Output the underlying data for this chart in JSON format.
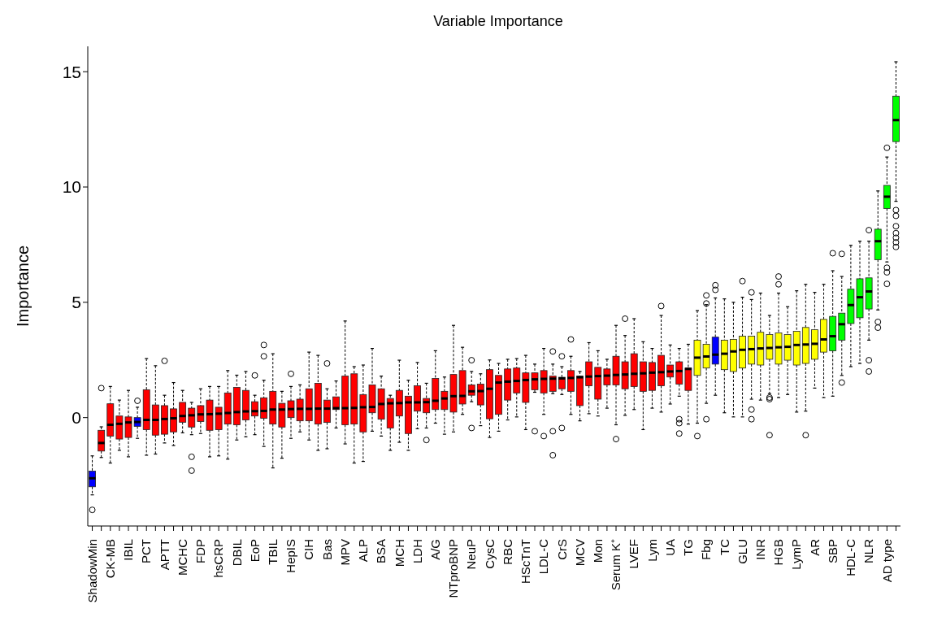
{
  "chart_data": {
    "type": "box",
    "title": "Variable Importance",
    "ylabel": "Importance",
    "categories": [
      "ShadowMin",
      null,
      "CK-MB",
      null,
      "IBIL",
      null,
      "PCT",
      null,
      "APTT",
      null,
      "MCHC",
      null,
      "FDP",
      null,
      "hsCRP",
      null,
      "DBIL",
      null,
      "EoP",
      null,
      "TBIL",
      null,
      "HepIS",
      null,
      "CIH",
      null,
      "Bas",
      null,
      "MPV",
      null,
      "ALP",
      null,
      "BSA",
      null,
      "MCH",
      null,
      "LDH",
      null,
      "A/G",
      null,
      "NTproBNP",
      null,
      "NeuP",
      null,
      "CysC",
      null,
      "RBC",
      null,
      "HScTnT",
      null,
      "LDL-C",
      null,
      "CrS",
      null,
      "MCV",
      null,
      "Mon",
      null,
      "Serum K⁺",
      null,
      "LVEF",
      null,
      "Lym",
      null,
      "UA",
      null,
      "TG",
      null,
      "Fbg",
      null,
      "TC",
      null,
      "GLU",
      null,
      "INR",
      null,
      "HGB",
      null,
      "LymP",
      null,
      "AR",
      null,
      "SBP",
      null,
      "HDL-C",
      null,
      "NLR",
      null,
      "AD type",
      null
    ],
    "colors": [
      "#0000ff",
      "#ff0000",
      "#ff0000",
      "#ff0000",
      "#ff0000",
      "#0000ff",
      "#ff0000",
      "#ff0000",
      "#ff0000",
      "#ff0000",
      "#ff0000",
      "#ff0000",
      "#ff0000",
      "#ff0000",
      "#ff0000",
      "#ff0000",
      "#ff0000",
      "#ff0000",
      "#ff0000",
      "#ff0000",
      "#ff0000",
      "#ff0000",
      "#ff0000",
      "#ff0000",
      "#ff0000",
      "#ff0000",
      "#ff0000",
      "#ff0000",
      "#ff0000",
      "#ff0000",
      "#ff0000",
      "#ff0000",
      "#ff0000",
      "#ff0000",
      "#ff0000",
      "#ff0000",
      "#ff0000",
      "#ff0000",
      "#ff0000",
      "#ff0000",
      "#ff0000",
      "#ff0000",
      "#ff0000",
      "#ff0000",
      "#ff0000",
      "#ff0000",
      "#ff0000",
      "#ff0000",
      "#ff0000",
      "#ff0000",
      "#ff0000",
      "#ff0000",
      "#ff0000",
      "#ff0000",
      "#ff0000",
      "#ff0000",
      "#ff0000",
      "#ff0000",
      "#ff0000",
      "#ff0000",
      "#ff0000",
      "#ff0000",
      "#ff0000",
      "#ff0000",
      "#ff0000",
      "#ff0000",
      "#ff0000",
      "#ffff00",
      "#ffff00",
      "#0000ff",
      "#ffff00",
      "#ffff00",
      "#ffff00",
      "#ffff00",
      "#ffff00",
      "#ffff00",
      "#ffff00",
      "#ffff00",
      "#ffff00",
      "#ffff00",
      "#ffff00",
      "#ffff00",
      "#00ff00",
      "#00ff00",
      "#00ff00",
      "#00ff00",
      "#00ff00",
      "#00ff00",
      "#00ff00",
      "#00ff00"
    ],
    "ylim": [
      -4.7,
      16.1
    ],
    "yticks": [
      0,
      5,
      10,
      15
    ],
    "boxes": [
      {
        "low": -3.35,
        "q1": -3.0,
        "median": -2.63,
        "q3": -2.32,
        "high": -1.66,
        "outliers": [
          -4.0
        ]
      },
      {
        "low": -1.73,
        "q1": -1.45,
        "median": -1.1,
        "q3": -0.55,
        "high": -0.4,
        "outliers": [
          1.28
        ]
      },
      {
        "low": -1.97,
        "q1": -0.8,
        "median": -0.31,
        "q3": 0.6,
        "high": 1.35
      },
      {
        "low": -1.42,
        "q1": -0.93,
        "median": -0.27,
        "q3": 0.07,
        "high": 0.76
      },
      {
        "low": -1.7,
        "q1": -0.86,
        "median": -0.21,
        "q3": 0.03,
        "high": 1.18
      },
      {
        "low": -0.9,
        "q1": -0.38,
        "median": -0.19,
        "q3": 0,
        "high": 0.45,
        "outliers": [
          0.73
        ]
      },
      {
        "low": -1.63,
        "q1": -0.52,
        "median": -0.1,
        "q3": 1.21,
        "high": 2.56
      },
      {
        "low": -1.58,
        "q1": -0.76,
        "median": -0.1,
        "q3": 0.55,
        "high": 2.25
      },
      {
        "low": -1.1,
        "q1": -0.72,
        "median": -0.06,
        "q3": 0.52,
        "high": 0.97,
        "outliers": [
          2.46
        ]
      },
      {
        "low": -1.21,
        "q1": -0.62,
        "median": -0.03,
        "q3": 0.38,
        "high": 1.52
      },
      {
        "low": -0.66,
        "q1": -0.2,
        "median": 0.07,
        "q3": 0.66,
        "high": 1.18
      },
      {
        "low": -0.74,
        "q1": -0.41,
        "median": 0.1,
        "q3": 0.41,
        "high": 0.66,
        "outliers": [
          -1.7,
          -2.3
        ]
      },
      {
        "low": -0.69,
        "q1": -0.17,
        "median": 0.14,
        "q3": 0.52,
        "high": 1.25
      },
      {
        "low": -1.7,
        "q1": -0.55,
        "median": 0.15,
        "q3": 0.76,
        "high": 1.35
      },
      {
        "low": -1.66,
        "q1": -0.52,
        "median": 0.17,
        "q3": 0.45,
        "high": 1.35
      },
      {
        "low": -1.8,
        "q1": -0.28,
        "median": 0.2,
        "q3": 1.07,
        "high": 2.04
      },
      {
        "low": -0.97,
        "q1": -0.31,
        "median": 0.24,
        "q3": 1.31,
        "high": 1.84
      },
      {
        "low": -0.83,
        "q1": -0.1,
        "median": 0.27,
        "q3": 1.18,
        "high": 2.0
      },
      {
        "low": -0.74,
        "q1": 0.07,
        "median": 0.28,
        "q3": 0.69,
        "high": 0.97,
        "outliers": [
          1.83
        ]
      },
      {
        "low": -1.25,
        "q1": -0.03,
        "median": 0.29,
        "q3": 0.86,
        "high": 1.62,
        "outliers": [
          2.66,
          3.15
        ]
      },
      {
        "low": -2.18,
        "q1": -0.28,
        "median": 0.35,
        "q3": 1.14,
        "high": 2.77
      },
      {
        "low": -1.76,
        "q1": -0.41,
        "median": 0.35,
        "q3": 0.62,
        "high": 1.14
      },
      {
        "low": -0.9,
        "q1": 0,
        "median": 0.37,
        "q3": 0.73,
        "high": 1.35,
        "outliers": [
          1.9
        ]
      },
      {
        "low": -0.62,
        "q1": -0.14,
        "median": 0.38,
        "q3": 0.8,
        "high": 1.42
      },
      {
        "low": -0.97,
        "q1": -0.14,
        "median": 0.38,
        "q3": 1.25,
        "high": 2.84
      },
      {
        "low": -1.42,
        "q1": -0.28,
        "median": 0.39,
        "q3": 1.49,
        "high": 2.7
      },
      {
        "low": -1.35,
        "q1": -0.21,
        "median": 0.39,
        "q3": 0.76,
        "high": 1.25,
        "outliers": [
          2.35
        ]
      },
      {
        "low": -0.45,
        "q1": 0.35,
        "median": 0.41,
        "q3": 0.9,
        "high": 1.59
      },
      {
        "low": -1.14,
        "q1": -0.31,
        "median": 0.41,
        "q3": 1.8,
        "high": 4.19
      },
      {
        "low": -1.97,
        "q1": -0.28,
        "median": 0.42,
        "q3": 1.9,
        "high": 2.21
      },
      {
        "low": -1.9,
        "q1": -0.62,
        "median": 0.45,
        "q3": 1.0,
        "high": 2.28
      },
      {
        "low": -0.59,
        "q1": 0.21,
        "median": 0.46,
        "q3": 1.42,
        "high": 3.0
      },
      {
        "low": -0.8,
        "q1": -0.07,
        "median": 0.59,
        "q3": 1.25,
        "high": 1.8
      },
      {
        "low": -1.42,
        "q1": -0.45,
        "median": 0.62,
        "q3": 0.83,
        "high": 0.97
      },
      {
        "low": -1.07,
        "q1": 0.07,
        "median": 0.63,
        "q3": 1.18,
        "high": 2.49
      },
      {
        "low": -1.42,
        "q1": -0.69,
        "median": 0.66,
        "q3": 0.93,
        "high": 1.62
      },
      {
        "low": -0.48,
        "q1": 0.28,
        "median": 0.66,
        "q3": 1.38,
        "high": 2.39
      },
      {
        "low": -0.45,
        "q1": 0.21,
        "median": 0.67,
        "q3": 0.83,
        "high": 1.49,
        "outliers": [
          -0.97
        ]
      },
      {
        "low": -0.24,
        "q1": 0.35,
        "median": 0.73,
        "q3": 1.7,
        "high": 2.9
      },
      {
        "low": -0.72,
        "q1": 0.35,
        "median": 0.83,
        "q3": 1.14,
        "high": 1.76
      },
      {
        "low": -0.62,
        "q1": 0.24,
        "median": 0.93,
        "q3": 1.87,
        "high": 4.0
      },
      {
        "low": 0.14,
        "q1": 0.59,
        "median": 0.94,
        "q3": 2.04,
        "high": 3.05
      },
      {
        "low": 0.69,
        "q1": 0.97,
        "median": 1.14,
        "q3": 1.42,
        "high": 2.0,
        "outliers": [
          2.49,
          -0.45
        ]
      },
      {
        "low": -0.35,
        "q1": 0.55,
        "median": 1.15,
        "q3": 1.45,
        "high": 1.9
      },
      {
        "low": -0.86,
        "q1": -0.05,
        "median": 1.25,
        "q3": 2.08,
        "high": 2.5
      },
      {
        "low": -0.59,
        "q1": 0.14,
        "median": 1.52,
        "q3": 1.83,
        "high": 2.35
      },
      {
        "low": -0.1,
        "q1": 0.76,
        "median": 1.56,
        "q3": 2.11,
        "high": 2.53
      },
      {
        "low": 0.03,
        "q1": 1.07,
        "median": 1.59,
        "q3": 2.15,
        "high": 2.56
      },
      {
        "low": -0.52,
        "q1": 0.66,
        "median": 1.63,
        "q3": 1.94,
        "high": 2.7
      },
      {
        "low": 1.1,
        "q1": 1.21,
        "median": 1.66,
        "q3": 1.94,
        "high": 2.32,
        "outliers": [
          -0.59
        ]
      },
      {
        "low": 0.14,
        "q1": 1.07,
        "median": 1.68,
        "q3": 2.04,
        "high": 3.0,
        "outliers": [
          -0.8
        ]
      },
      {
        "low": 1.04,
        "q1": 1.14,
        "median": 1.69,
        "q3": 1.8,
        "high": 2.32,
        "outliers": [
          2.87,
          -0.59,
          -1.63
        ]
      },
      {
        "low": 1.0,
        "q1": 1.25,
        "median": 1.7,
        "q3": 1.75,
        "high": 2.21,
        "outliers": [
          2.66,
          -0.45
        ]
      },
      {
        "low": 0.14,
        "q1": 1.14,
        "median": 1.72,
        "q3": 2.04,
        "high": 2.66,
        "outliers": [
          3.39
        ]
      },
      {
        "low": -0.14,
        "q1": 0.52,
        "median": 1.75,
        "q3": 1.8,
        "high": 2.0
      },
      {
        "low": 0.17,
        "q1": 1.38,
        "median": 1.78,
        "q3": 2.42,
        "high": 3.25
      },
      {
        "low": 0.07,
        "q1": 0.8,
        "median": 1.8,
        "q3": 2.18,
        "high": 2.9
      },
      {
        "low": 0.41,
        "q1": 1.42,
        "median": 1.82,
        "q3": 2.11,
        "high": 2.53
      },
      {
        "low": -0.31,
        "q1": 1.42,
        "median": 1.85,
        "q3": 2.66,
        "high": 4.0,
        "outliers": [
          -0.93
        ]
      },
      {
        "low": 0.1,
        "q1": 1.25,
        "median": 1.87,
        "q3": 2.42,
        "high": 3.56,
        "outliers": [
          4.29
        ]
      },
      {
        "low": 0.35,
        "q1": 1.35,
        "median": 1.9,
        "q3": 2.77,
        "high": 4.29
      },
      {
        "low": -0.52,
        "q1": 1.14,
        "median": 1.92,
        "q3": 2.42,
        "high": 3.29
      },
      {
        "low": 0.41,
        "q1": 1.18,
        "median": 1.95,
        "q3": 2.39,
        "high": 3.0
      },
      {
        "low": 0.24,
        "q1": 1.38,
        "median": 1.97,
        "q3": 2.7,
        "high": 4.43,
        "outliers": [
          4.84
        ]
      },
      {
        "low": 0.59,
        "q1": 1.76,
        "median": 2.0,
        "q3": 2.28,
        "high": 3.15
      },
      {
        "low": 0.93,
        "q1": 1.45,
        "median": 2.02,
        "q3": 2.42,
        "high": 3.0,
        "outliers": [
          -0.07,
          -0.24,
          -0.69
        ]
      },
      {
        "low": -0.28,
        "q1": 1.18,
        "median": 2.11,
        "q3": 2.15,
        "high": 3.18
      },
      {
        "low": -0.24,
        "q1": 1.83,
        "median": 2.6,
        "q3": 3.36,
        "high": 4.64,
        "outliers": [
          -0.8
        ]
      },
      {
        "low": 0.62,
        "q1": 2.15,
        "median": 2.65,
        "q3": 3.18,
        "high": 4.9,
        "outliers": [
          5.3,
          4.95,
          -0.07
        ]
      },
      {
        "low": 0.97,
        "q1": 2.32,
        "median": 2.73,
        "q3": 3.49,
        "high": 5.19,
        "outliers": [
          5.74,
          5.54
        ]
      },
      {
        "low": 0.21,
        "q1": 2.08,
        "median": 2.77,
        "q3": 3.36,
        "high": 5.15
      },
      {
        "low": 0.03,
        "q1": 2.0,
        "median": 2.87,
        "q3": 3.39,
        "high": 5.0
      },
      {
        "low": 0.03,
        "q1": 2.15,
        "median": 2.94,
        "q3": 3.53,
        "high": 5.22,
        "outliers": [
          5.92
        ]
      },
      {
        "low": 0.8,
        "q1": 2.32,
        "median": 2.97,
        "q3": 3.53,
        "high": 5.12,
        "outliers": [
          5.43,
          0.35,
          -0.07
        ]
      },
      {
        "low": 0.76,
        "q1": 2.28,
        "median": 3.0,
        "q3": 3.7,
        "high": 5.4
      },
      {
        "low": 1.04,
        "q1": 2.53,
        "median": 3.02,
        "q3": 3.6,
        "high": 4.43,
        "outliers": [
          0.87,
          0.8,
          -0.76
        ]
      },
      {
        "low": 0.87,
        "q1": 2.32,
        "median": 3.05,
        "q3": 3.67,
        "high": 5.4,
        "outliers": [
          6.12,
          5.78
        ]
      },
      {
        "low": 1.0,
        "q1": 2.49,
        "median": 3.07,
        "q3": 3.6,
        "high": 4.81
      },
      {
        "low": 0.24,
        "q1": 2.28,
        "median": 3.15,
        "q3": 3.74,
        "high": 5.5
      },
      {
        "low": 0.28,
        "q1": 2.35,
        "median": 3.17,
        "q3": 3.91,
        "high": 5.78,
        "outliers": [
          -0.76
        ]
      },
      {
        "low": 1.28,
        "q1": 2.53,
        "median": 3.2,
        "q3": 3.81,
        "high": 5.43
      },
      {
        "low": 0.87,
        "q1": 2.84,
        "median": 3.39,
        "q3": 4.26,
        "high": 5.78
      },
      {
        "low": 0.93,
        "q1": 2.9,
        "median": 3.53,
        "q3": 4.39,
        "high": 6.37,
        "outliers": [
          7.13
        ]
      },
      {
        "low": 1.83,
        "q1": 3.36,
        "median": 4.05,
        "q3": 4.53,
        "high": 6.12,
        "outliers": [
          7.1,
          1.52
        ]
      },
      {
        "low": 2.21,
        "q1": 4.08,
        "median": 4.88,
        "q3": 5.57,
        "high": 7.47
      },
      {
        "low": 2.35,
        "q1": 4.33,
        "median": 5.22,
        "q3": 6.02,
        "high": 7.65
      },
      {
        "low": 3.36,
        "q1": 4.71,
        "median": 5.47,
        "q3": 6.06,
        "high": 7.65,
        "outliers": [
          8.13,
          2.49,
          2.0
        ]
      },
      {
        "low": 4.67,
        "q1": 6.85,
        "median": 7.65,
        "q3": 8.17,
        "high": 9.83,
        "outliers": [
          4.15,
          3.9
        ]
      },
      {
        "low": 6.75,
        "q1": 9.07,
        "median": 9.58,
        "q3": 10.07,
        "high": 11.3,
        "outliers": [
          11.7,
          6.5,
          6.3,
          5.8
        ]
      },
      {
        "low": 9.38,
        "q1": 11.97,
        "median": 12.9,
        "q3": 13.94,
        "high": 15.43,
        "outliers": [
          9.0,
          8.75,
          8.3,
          8.0,
          7.8,
          7.6,
          7.4
        ]
      }
    ]
  }
}
